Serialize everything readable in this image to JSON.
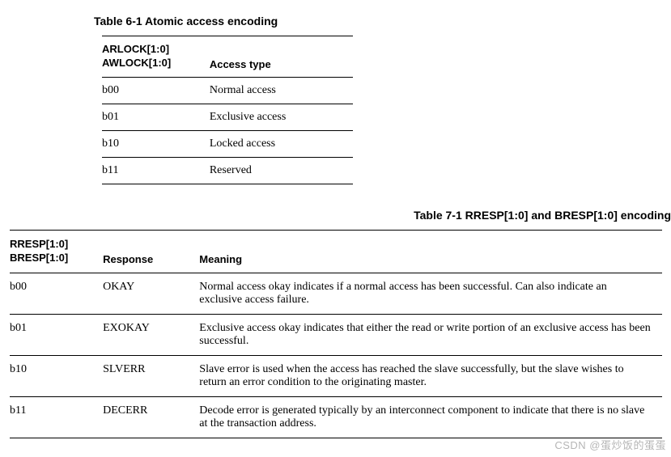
{
  "table6": {
    "title": "Table 6-1 Atomic access encoding",
    "header": {
      "col1_line1": "ARLOCK[1:0]",
      "col1_line2": "AWLOCK[1:0]",
      "col2": "Access type"
    },
    "rows": [
      {
        "code": "b00",
        "type": "Normal access"
      },
      {
        "code": "b01",
        "type": "Exclusive access"
      },
      {
        "code": "b10",
        "type": "Locked access"
      },
      {
        "code": "b11",
        "type": "Reserved"
      }
    ]
  },
  "table7": {
    "title": "Table 7-1 RRESP[1:0] and BRESP[1:0] encoding",
    "header": {
      "col1_line1": "RRESP[1:0]",
      "col1_line2": "BRESP[1:0]",
      "col2": "Response",
      "col3": "Meaning"
    },
    "rows": [
      {
        "code": "b00",
        "resp": "OKAY",
        "meaning": "Normal access okay indicates if a normal access has been successful. Can also indicate an exclusive access failure."
      },
      {
        "code": "b01",
        "resp": "EXOKAY",
        "meaning": "Exclusive access okay indicates that either the read or write portion of an exclusive access has been successful."
      },
      {
        "code": "b10",
        "resp": "SLVERR",
        "meaning": "Slave error is used when the access has reached the slave successfully, but the slave wishes to return an error condition to the originating master."
      },
      {
        "code": "b11",
        "resp": "DECERR",
        "meaning": "Decode error is generated typically by an interconnect component to indicate that there is no slave at the transaction address."
      }
    ]
  },
  "watermark": "CSDN @蛋炒饭的蛋蛋"
}
